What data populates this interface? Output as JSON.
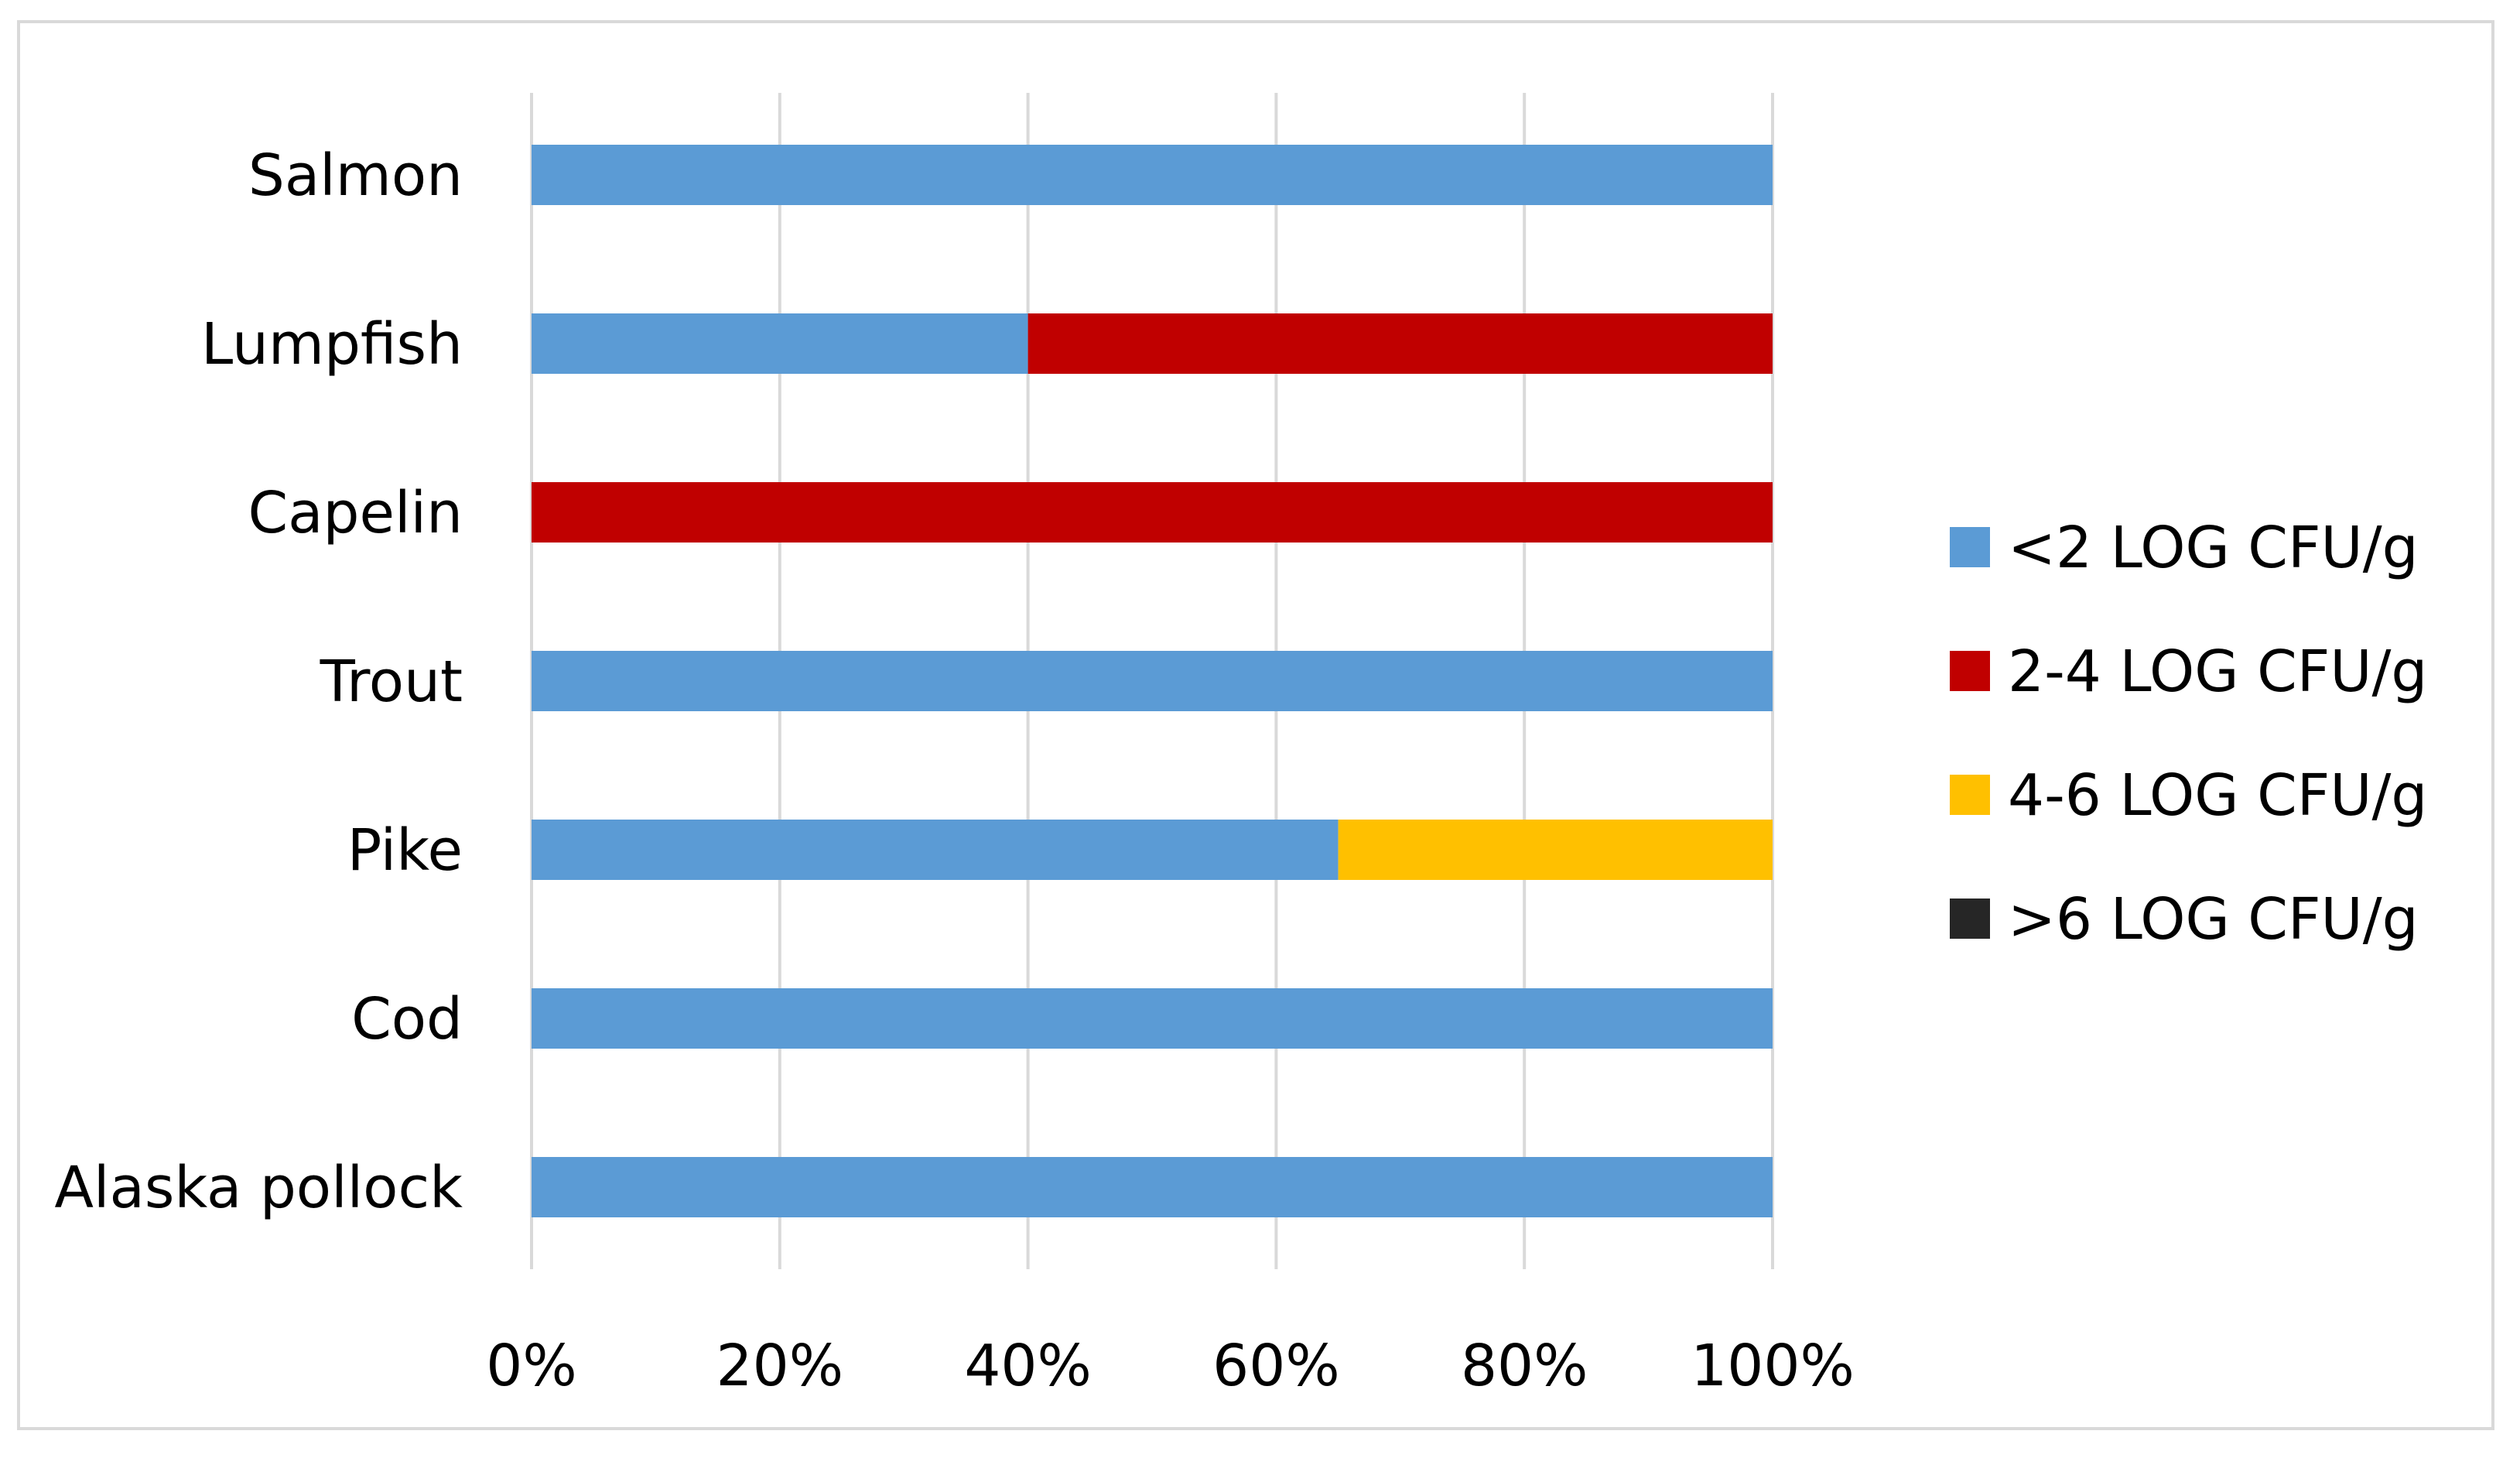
{
  "chart_data": {
    "type": "bar",
    "orientation": "horizontal",
    "stacked": "percent",
    "categories": [
      "Salmon",
      "Lumpfish",
      "Capelin",
      "Trout",
      "Pike",
      "Cod",
      "Alaska pollock"
    ],
    "series": [
      {
        "name": "<2 LOG CFU/g",
        "color": "#5b9bd5",
        "values": [
          100,
          40,
          0,
          100,
          65,
          100,
          100
        ]
      },
      {
        "name": "2-4 LOG CFU/g",
        "color": "#c00000",
        "values": [
          0,
          60,
          100,
          0,
          0,
          0,
          0
        ]
      },
      {
        "name": "4-6 LOG CFU/g",
        "color": "#ffc000",
        "values": [
          0,
          0,
          0,
          0,
          35,
          0,
          0
        ]
      },
      {
        "name": ">6 LOG CFU/g",
        "color": "#262626",
        "values": [
          0,
          0,
          0,
          0,
          0,
          0,
          0
        ]
      }
    ],
    "xlim": [
      0,
      100
    ],
    "x_ticks": [
      "0%",
      "20%",
      "40%",
      "60%",
      "80%",
      "100%"
    ],
    "title": "",
    "xlabel": "",
    "ylabel": "",
    "grid": "vertical",
    "legend_position": "right",
    "gridline_color": "#d9d9d9"
  }
}
